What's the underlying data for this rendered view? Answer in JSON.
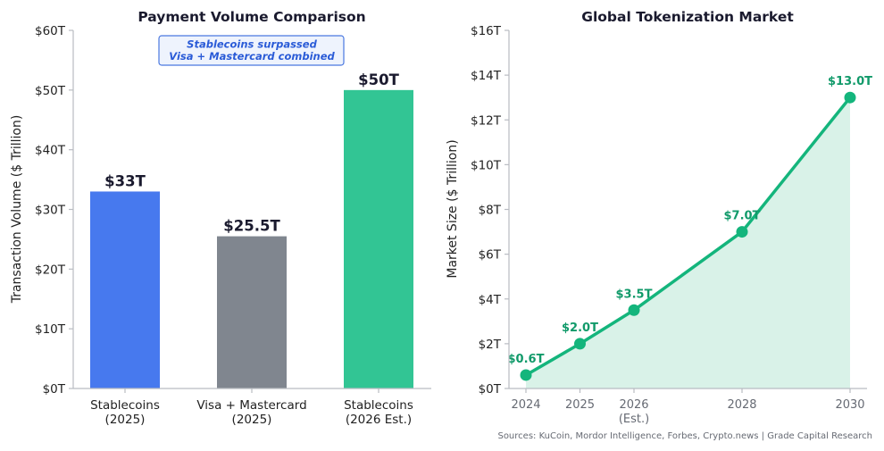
{
  "chart_data": [
    {
      "type": "bar",
      "title": "Payment Volume Comparison",
      "ylabel": "Transaction Volume ($ Trillion)",
      "xlabel": "",
      "ylim": [
        0,
        60
      ],
      "yticks": [
        "$0T",
        "$10T",
        "$20T",
        "$30T",
        "$40T",
        "$50T",
        "$60T"
      ],
      "categories": [
        [
          "Stablecoins",
          "(2025)"
        ],
        [
          "Visa + Mastercard",
          "(2025)"
        ],
        [
          "Stablecoins",
          "(2026 Est.)"
        ]
      ],
      "values": [
        33,
        25.5,
        50
      ],
      "value_labels": [
        "$33T",
        "$25.5T",
        "$50T"
      ],
      "colors": [
        "#4779ee",
        "#80868f",
        "#32c594"
      ],
      "annotation": [
        "Stablecoins surpassed",
        "Visa + Mastercard combined"
      ],
      "grid": false
    },
    {
      "type": "line",
      "title": "Global Tokenization Market",
      "ylabel": "Market Size ($ Trillion)",
      "xlabel": "",
      "ylim": [
        0,
        16
      ],
      "yticks": [
        "$0T",
        "$2T",
        "$4T",
        "$6T",
        "$8T",
        "$10T",
        "$12T",
        "$14T",
        "$16T"
      ],
      "x": [
        "2024",
        "2025",
        "2026",
        "2028",
        "2030"
      ],
      "x_sub": [
        "",
        "",
        "(Est.)",
        "",
        ""
      ],
      "values": [
        0.6,
        2.0,
        3.5,
        7.0,
        13.0
      ],
      "value_labels": [
        "$0.6T",
        "$2.0T",
        "$3.5T",
        "$7.0T",
        "$13.0T"
      ],
      "line_color": "#14b57c",
      "fill_color": "#d9f2e8",
      "label_color": "#119a6a",
      "grid": false
    }
  ],
  "source": "Sources: KuCoin, Mordor Intelligence, Forbes, Crypto.news | Grade Capital Research"
}
